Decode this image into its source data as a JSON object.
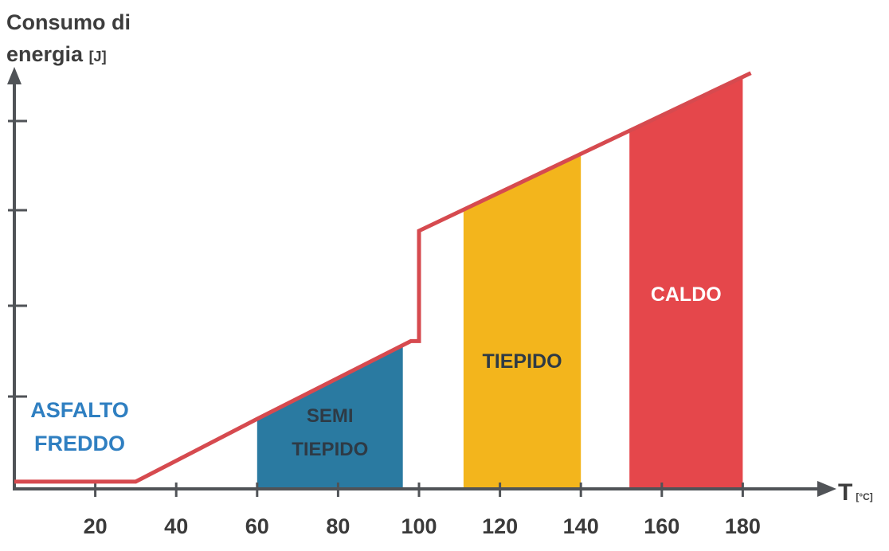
{
  "chart_data": {
    "type": "line",
    "ylabel": "Consumo di energia",
    "ylabel_line1": "Consumo di",
    "ylabel_line2": "energia",
    "ylabel_unit": "[J]",
    "xlabel": "T",
    "xlabel_unit": "[°C]",
    "x_ticks": [
      20,
      40,
      60,
      80,
      100,
      120,
      140,
      160,
      180
    ],
    "xlim": [
      0,
      200
    ],
    "ylim": [
      0,
      100
    ],
    "series": [
      {
        "points": [
          {
            "x": 0,
            "y": 1.5
          },
          {
            "x": 30,
            "y": 1.5
          },
          {
            "x": 60,
            "y": 16
          },
          {
            "x": 98,
            "y": 34
          },
          {
            "x": 100,
            "y": 34
          },
          {
            "x": 100,
            "y": 59.5
          },
          {
            "x": 182,
            "y": 96
          }
        ],
        "color": "#d64a4f"
      }
    ],
    "regions": [
      {
        "x_start": 60,
        "x_end": 96,
        "label_lines": [
          "SEMI",
          "TIEPIDO"
        ],
        "color": "#2a7aa1",
        "label_color": "#2e3a45"
      },
      {
        "x_start": 111,
        "x_end": 140,
        "label_lines": [
          "TIEPIDO"
        ],
        "color": "#f3b51c",
        "label_color": "#2e3a45"
      },
      {
        "x_start": 152,
        "x_end": 180,
        "label_lines": [
          "CALDO"
        ],
        "color": "#e5474b",
        "label_color": "#ffffff"
      }
    ],
    "annotations": [
      {
        "label_lines": [
          "ASFALTO",
          "FREDDO"
        ],
        "color": "#2f7fc1"
      }
    ],
    "axis_color": "#505357"
  }
}
